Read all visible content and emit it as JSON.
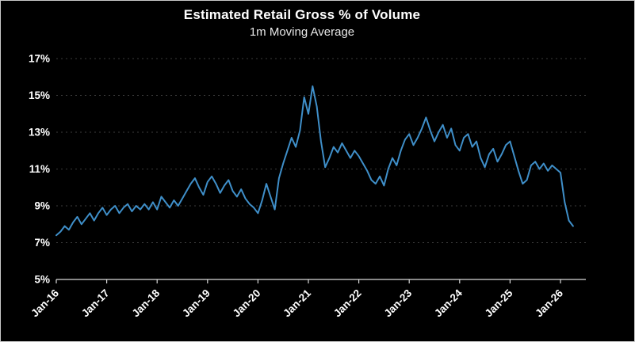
{
  "chart_data": {
    "type": "line",
    "title": "Estimated Retail Gross % of Volume",
    "subtitle": "1m Moving Average",
    "xlabel": "",
    "ylabel": "",
    "ylim": [
      5,
      17
    ],
    "grid": "horizontal-dotted",
    "legend_position": "none",
    "line_color": "#3f8fc9",
    "background_color": "#000000",
    "axis_color": "#d9d9d9",
    "gridline_color": "#4a4a4a",
    "y_tick_labels": [
      "5%",
      "7%",
      "9%",
      "11%",
      "13%",
      "15%",
      "17%"
    ],
    "y_tick_values": [
      5,
      7,
      9,
      11,
      13,
      15,
      17
    ],
    "x_tick_labels": [
      "Jan-16",
      "Jan-17",
      "Jan-18",
      "Jan-19",
      "Jan-20",
      "Jan-21",
      "Jan-22",
      "Jan-23",
      "Jan-24",
      "Jan-25",
      "Jan-26"
    ],
    "x_tick_month_index": [
      0,
      12,
      24,
      36,
      48,
      60,
      72,
      84,
      96,
      108,
      120
    ],
    "series": [
      {
        "name": "1m Moving Average",
        "unit": "%",
        "start": "Jan-16",
        "frequency": "monthly",
        "values": [
          7.4,
          7.6,
          7.9,
          7.7,
          8.1,
          8.4,
          8.0,
          8.3,
          8.6,
          8.2,
          8.6,
          8.9,
          8.5,
          8.8,
          9.0,
          8.6,
          8.9,
          9.1,
          8.7,
          9.0,
          8.8,
          9.1,
          8.8,
          9.2,
          8.8,
          9.5,
          9.2,
          8.9,
          9.3,
          9.0,
          9.4,
          9.8,
          10.2,
          10.5,
          10.0,
          9.6,
          10.3,
          10.6,
          10.2,
          9.7,
          10.1,
          10.4,
          9.8,
          9.5,
          9.9,
          9.4,
          9.1,
          8.9,
          8.6,
          9.3,
          10.2,
          9.5,
          8.8,
          10.5,
          11.3,
          12.0,
          12.7,
          12.2,
          13.1,
          14.9,
          14.0,
          15.5,
          14.4,
          12.5,
          11.1,
          11.6,
          12.2,
          11.9,
          12.4,
          12.0,
          11.6,
          12.0,
          11.7,
          11.3,
          10.9,
          10.4,
          10.2,
          10.6,
          10.1,
          11.0,
          11.6,
          11.2,
          12.0,
          12.6,
          12.9,
          12.3,
          12.7,
          13.2,
          13.8,
          13.1,
          12.5,
          13.0,
          13.4,
          12.7,
          13.2,
          12.3,
          12.0,
          12.7,
          12.9,
          12.2,
          12.5,
          11.6,
          11.1,
          11.8,
          12.1,
          11.4,
          11.8,
          12.3,
          12.5,
          11.7,
          10.9,
          10.2,
          10.4,
          11.2,
          11.4,
          11.0,
          11.3,
          10.9,
          11.2,
          11.0,
          10.8,
          9.2,
          8.2,
          7.9
        ]
      }
    ]
  }
}
